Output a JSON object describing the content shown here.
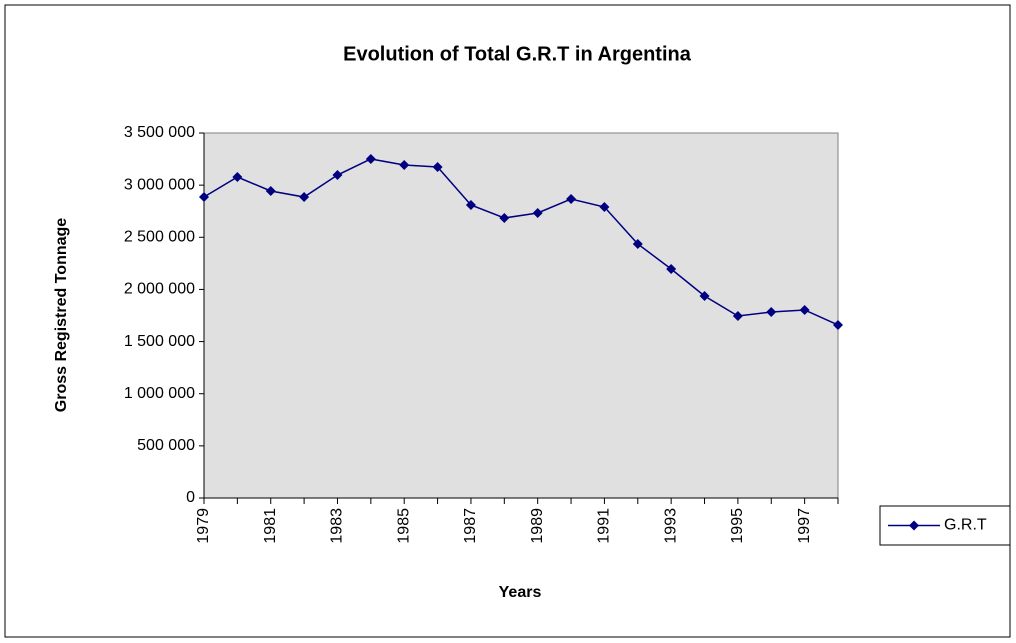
{
  "chart_data": {
    "type": "line",
    "title": "Evolution of Total G.R.T in Argentina",
    "x_label": "Years",
    "y_label": "Gross Registred Tonnage",
    "categories": [
      "1979",
      null,
      "1981",
      null,
      "1983",
      null,
      "1985",
      null,
      "1987",
      null,
      "1989",
      null,
      "1991",
      null,
      "1993",
      null,
      "1995",
      null,
      "1997",
      null
    ],
    "series": [
      {
        "name": "G.R.T",
        "color": "#000080",
        "values": [
          2886000,
          3078000,
          2944000,
          2886000,
          3097000,
          3251000,
          3193000,
          3174000,
          2810000,
          2685000,
          2733000,
          2867000,
          2790000,
          2436000,
          2196000,
          1937000,
          1745000,
          1784000,
          1803000,
          1659000
        ]
      }
    ],
    "ylim": [
      0,
      3500000
    ],
    "yticks": [
      0,
      {
        "value": 500000,
        "label": "500 000"
      },
      {
        "value": 1000000,
        "label": "1 000 000"
      },
      {
        "value": 1500000,
        "label": "1 500 000"
      },
      {
        "value": 2000000,
        "label": "2 000 000"
      },
      {
        "value": 2500000,
        "label": "2 500 000"
      },
      {
        "value": 3000000,
        "label": "3 000 000"
      },
      {
        "value": 3500000,
        "label": "3 500 000"
      }
    ],
    "plot_background": "#e0e0e0",
    "legend": "right"
  }
}
